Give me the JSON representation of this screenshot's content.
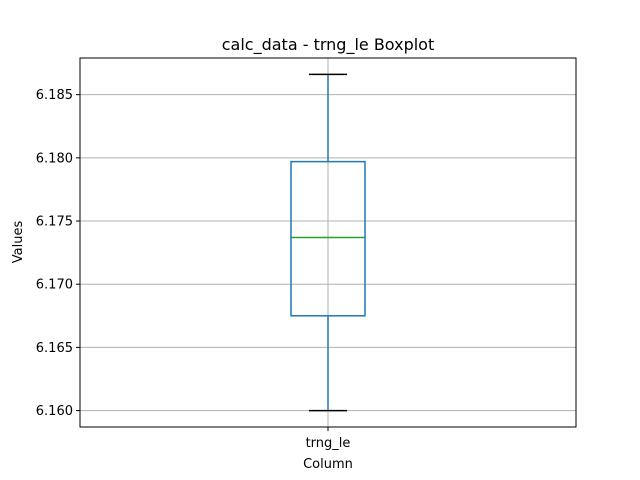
{
  "chart_data": {
    "type": "boxplot",
    "title": "calc_data - trng_le Boxplot",
    "xlabel": "Column",
    "ylabel": "Values",
    "categories": [
      "trng_le"
    ],
    "boxes": [
      {
        "category": "trng_le",
        "whisker_low": 6.16,
        "q1": 6.1675,
        "median": 6.1737,
        "q3": 6.1797,
        "whisker_high": 6.1866
      }
    ],
    "ylim": [
      6.1587,
      6.1879
    ],
    "yticks": [
      6.16,
      6.165,
      6.17,
      6.175,
      6.18,
      6.185
    ],
    "ytick_labels": [
      "6.160",
      "6.165",
      "6.170",
      "6.175",
      "6.180",
      "6.185"
    ],
    "grid": true,
    "colors": {
      "box": "#1f77b4",
      "median": "#2ca02c",
      "caps": "#000000",
      "grid": "#b0b0b0",
      "frame": "#000000"
    }
  }
}
